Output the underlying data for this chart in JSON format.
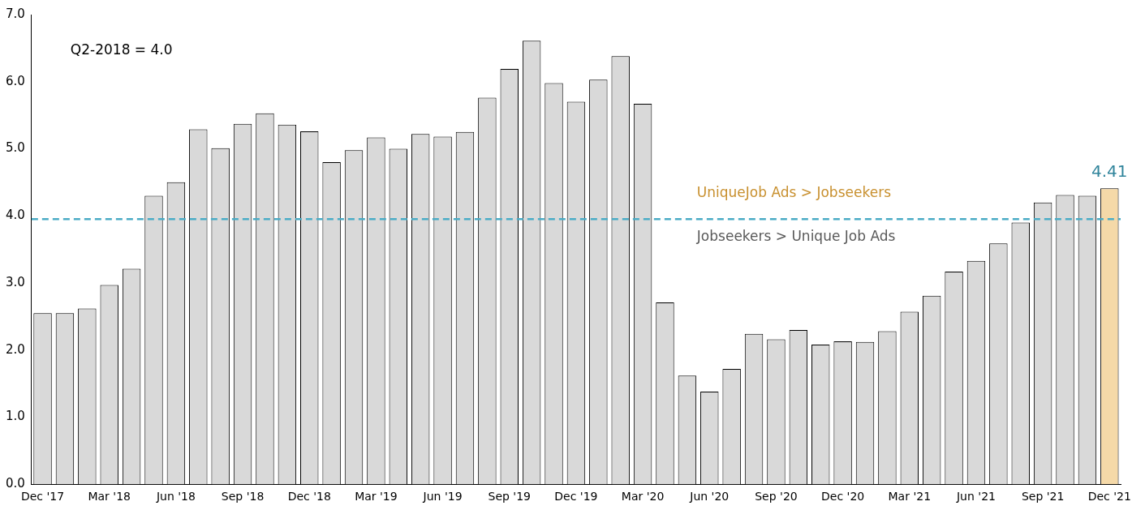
{
  "chart_data": {
    "type": "bar",
    "categories": [
      "Dec '17",
      null,
      null,
      "Mar '18",
      null,
      null,
      "Jun '18",
      null,
      null,
      "Sep '18",
      null,
      null,
      "Dec '18",
      null,
      null,
      "Mar '19",
      null,
      null,
      "Jun '19",
      null,
      null,
      "Sep '19",
      null,
      null,
      "Dec '19",
      null,
      null,
      "Mar '20",
      null,
      null,
      "Jun '20",
      null,
      null,
      "Sep '20",
      null,
      null,
      "Dec '20",
      null,
      null,
      "Mar '21",
      null,
      null,
      "Jun '21",
      null,
      null,
      "Sep '21",
      null,
      null,
      "Dec '21"
    ],
    "values": [
      2.55,
      2.55,
      2.62,
      2.97,
      3.21,
      4.3,
      4.5,
      5.29,
      5.01,
      5.37,
      5.53,
      5.36,
      5.26,
      4.8,
      4.98,
      5.17,
      5.0,
      5.22,
      5.18,
      5.25,
      5.76,
      6.19,
      6.61,
      5.98,
      5.7,
      6.03,
      6.38,
      5.67,
      2.71,
      1.62,
      1.38,
      1.72,
      2.24,
      2.16,
      2.3,
      2.08,
      2.13,
      2.12,
      2.28,
      2.57,
      2.81,
      3.17,
      3.33,
      3.59,
      3.9,
      4.2,
      4.31,
      4.3,
      4.41
    ],
    "colors": [
      "#d9d9d9",
      "#d9d9d9",
      "#d9d9d9",
      "#d9d9d9",
      "#d9d9d9",
      "#d9d9d9",
      "#d9d9d9",
      "#d9d9d9",
      "#d9d9d9",
      "#d9d9d9",
      "#d9d9d9",
      "#d9d9d9",
      "#d9d9d9",
      "#d9d9d9",
      "#d9d9d9",
      "#d9d9d9",
      "#d9d9d9",
      "#d9d9d9",
      "#d9d9d9",
      "#d9d9d9",
      "#d9d9d9",
      "#d9d9d9",
      "#d9d9d9",
      "#d9d9d9",
      "#d9d9d9",
      "#d9d9d9",
      "#d9d9d9",
      "#d9d9d9",
      "#d9d9d9",
      "#d9d9d9",
      "#d9d9d9",
      "#d9d9d9",
      "#d9d9d9",
      "#d9d9d9",
      "#d9d9d9",
      "#d9d9d9",
      "#d9d9d9",
      "#d9d9d9",
      "#d9d9d9",
      "#d9d9d9",
      "#d9d9d9",
      "#d9d9d9",
      "#d9d9d9",
      "#d9d9d9",
      "#d9d9d9",
      "#d9d9d9",
      "#d9d9d9",
      "#d9d9d9",
      "#f5d9a8"
    ],
    "value_labels": [
      null,
      null,
      null,
      null,
      null,
      null,
      null,
      null,
      null,
      null,
      null,
      null,
      null,
      null,
      null,
      null,
      null,
      null,
      null,
      null,
      null,
      null,
      null,
      null,
      null,
      null,
      null,
      null,
      null,
      null,
      null,
      null,
      null,
      null,
      null,
      null,
      null,
      null,
      null,
      null,
      null,
      null,
      null,
      null,
      null,
      null,
      null,
      null,
      "4.41"
    ],
    "ylim": [
      0,
      7
    ],
    "yticks": [
      {
        "value": 0,
        "label": "0.0"
      },
      {
        "value": 1,
        "label": "1.0"
      },
      {
        "value": 2,
        "label": "2.0"
      },
      {
        "value": 3,
        "label": "3.0"
      },
      {
        "value": 4,
        "label": "4.0"
      },
      {
        "value": 5,
        "label": "5.0"
      },
      {
        "value": 6,
        "label": "6.0"
      },
      {
        "value": 7,
        "label": "7.0"
      }
    ],
    "ref_lines": [
      {
        "axis": "y",
        "value": 3.95,
        "color": "#4bacc6",
        "line_style": "dashed"
      }
    ],
    "annotations": [
      "Q2-2018 = 4.0",
      "UniqueJob Ads > Jobseekers",
      "Jobseekers > Unique Job Ads"
    ],
    "grid": false,
    "legend": false
  }
}
